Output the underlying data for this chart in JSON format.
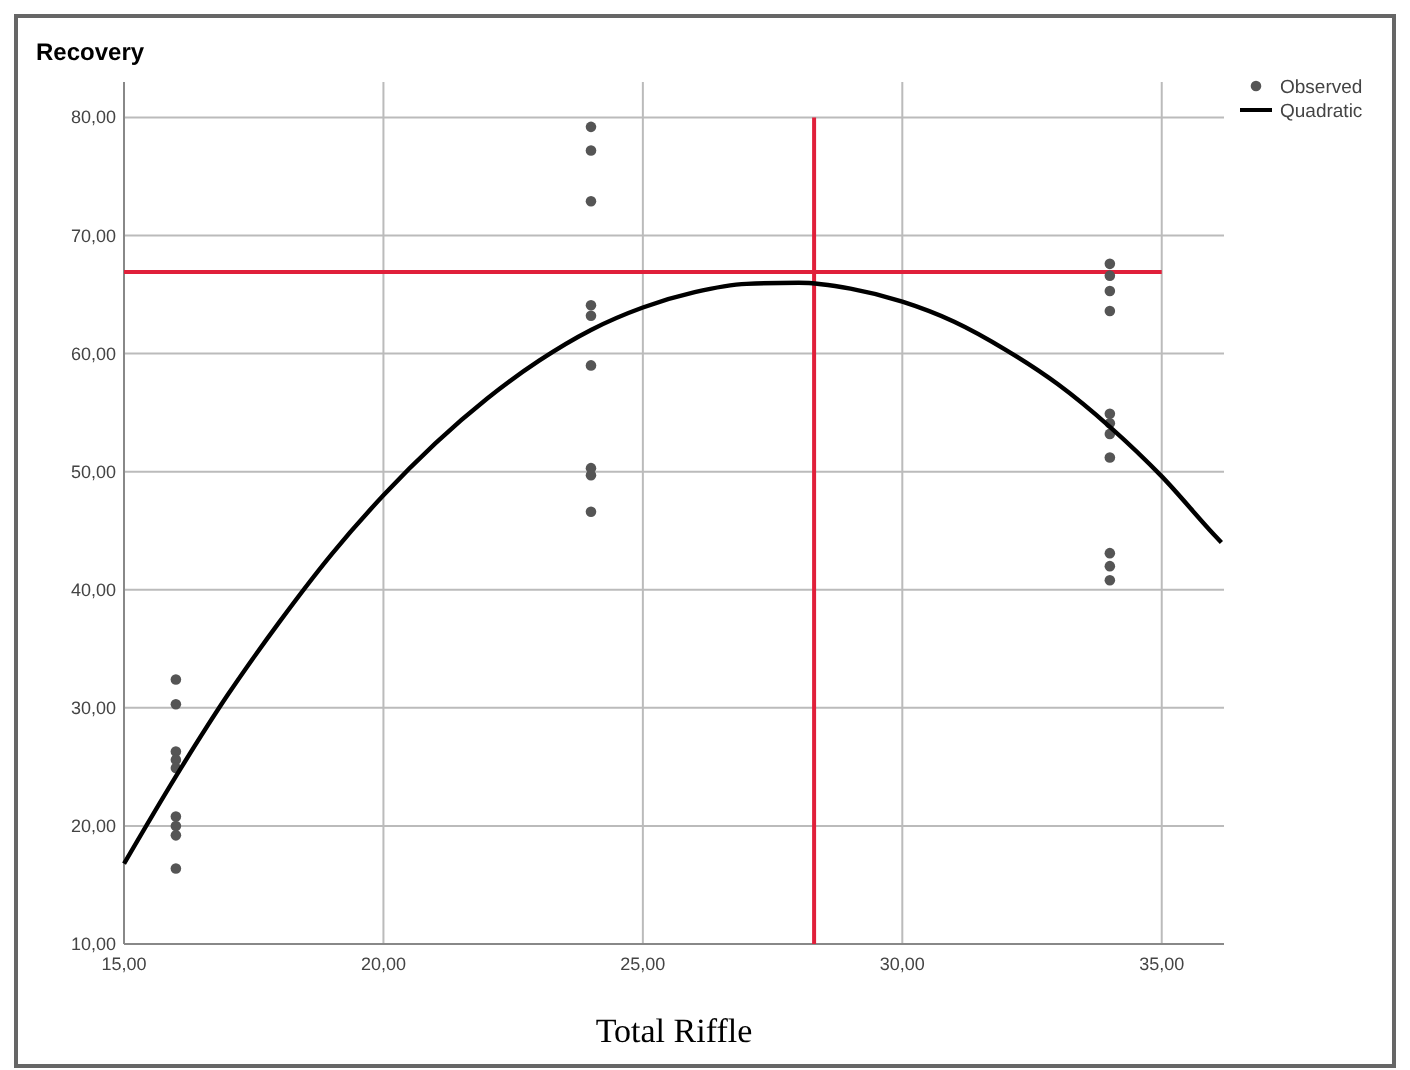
{
  "chart_data": {
    "type": "scatter",
    "ylabel": "Recovery",
    "xlabel": "Total Riffle",
    "xlim": [
      15,
      36.2
    ],
    "xticks": [
      {
        "value": 15,
        "label": "15,00"
      },
      {
        "value": 20,
        "label": "20,00"
      },
      {
        "value": 25,
        "label": "25,00"
      },
      {
        "value": 30,
        "label": "30,00"
      },
      {
        "value": 35,
        "label": "35,00"
      }
    ],
    "ylim": [
      10,
      83
    ],
    "yticks": [
      {
        "value": 10,
        "label": "10,00"
      },
      {
        "value": 20,
        "label": "20,00"
      },
      {
        "value": 30,
        "label": "30,00"
      },
      {
        "value": 40,
        "label": "40,00"
      },
      {
        "value": 50,
        "label": "50,00"
      },
      {
        "value": 60,
        "label": "60,00"
      },
      {
        "value": 70,
        "label": "70,00"
      },
      {
        "value": 80,
        "label": "80,00"
      }
    ],
    "grid": true,
    "legend": "top right",
    "marker": "circle",
    "series": [
      {
        "name": "Observed",
        "type": "scatter",
        "color": "#555555",
        "x": [
          16,
          16,
          16,
          16,
          16,
          16,
          16,
          16,
          16,
          24,
          24,
          24,
          24,
          24,
          24,
          24,
          24,
          24,
          34,
          34,
          34,
          34,
          34,
          34,
          34,
          34,
          34,
          34,
          34
        ],
        "values": [
          32.4,
          30.3,
          26.3,
          25.6,
          24.9,
          20.8,
          20,
          19.2,
          16.4,
          79.2,
          77.2,
          72.9,
          64.1,
          63.2,
          59,
          50.3,
          49.7,
          46.6,
          67.6,
          66.6,
          65.3,
          63.6,
          54.9,
          54.1,
          53.2,
          51.2,
          43.1,
          42,
          40.8
        ]
      },
      {
        "name": "Quadratic",
        "type": "line",
        "color": "#000000",
        "marker": "none",
        "line_style": "solid",
        "x": [
          15,
          16,
          17,
          18,
          19,
          20,
          21,
          22,
          23,
          24,
          25,
          26,
          27,
          28,
          29,
          30,
          31,
          32,
          33,
          34,
          35,
          36,
          36.15
        ],
        "values": [
          16.8,
          24.2,
          31.1,
          37.3,
          43,
          48,
          52.4,
          56.2,
          59.4,
          62,
          63.9,
          65.2,
          65.9,
          66,
          65.5,
          64.4,
          62.7,
          60.3,
          57.4,
          53.8,
          49.6,
          44.7,
          44
        ]
      }
    ],
    "ref_lines": [
      {
        "axis": "x",
        "value": 28.3,
        "color": "#e0203a"
      },
      {
        "axis": "y",
        "value": 66.9,
        "color": "#e0203a"
      }
    ]
  }
}
